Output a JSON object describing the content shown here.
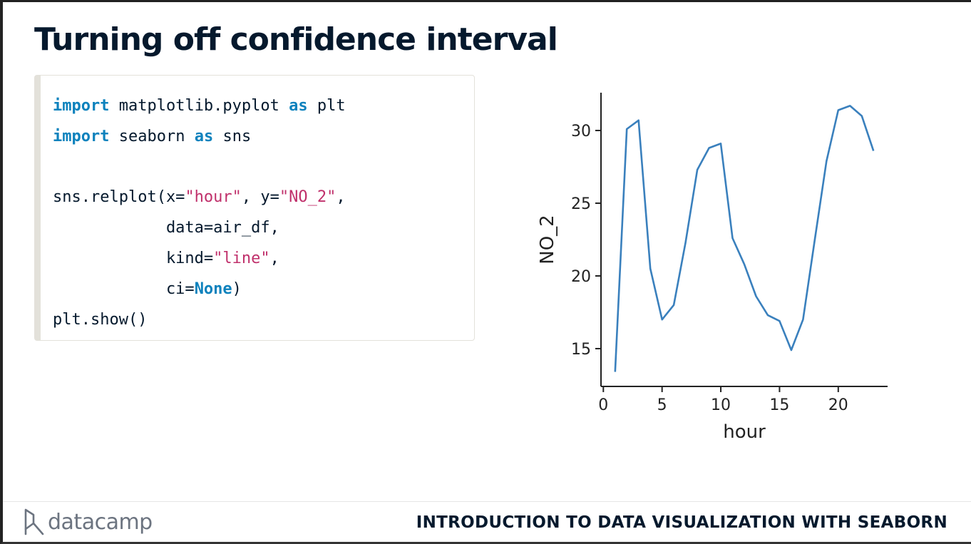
{
  "slide": {
    "title": "Turning off confidence interval",
    "footer_course": "INTRODUCTION TO DATA VISUALIZATION WITH SEABORN",
    "logo_text": "datacamp"
  },
  "code": {
    "l1": {
      "kw1": "import",
      "mid": " matplotlib.pyplot ",
      "kw2": "as",
      "tail": " plt"
    },
    "l2": {
      "kw1": "import",
      "mid": " seaborn ",
      "kw2": "as",
      "tail": " sns"
    },
    "l3": {
      "a": "sns.relplot(x=",
      "s1": "\"hour\"",
      "b": ", y=",
      "s2": "\"NO_2\"",
      "c": ","
    },
    "l4": {
      "a": "            data=air_df,"
    },
    "l5": {
      "a": "            kind=",
      "s1": "\"line\"",
      "b": ","
    },
    "l6": {
      "a": "            ci=",
      "kw": "None",
      "b": ")"
    },
    "l7": {
      "a": "plt.show()"
    }
  },
  "colors": {
    "keyword": "#0e82bd",
    "string": "#c0306b",
    "line": "#3a80bd",
    "title": "#05192d"
  },
  "chart_data": {
    "type": "line",
    "xlabel": "hour",
    "ylabel": "NO_2",
    "xlim": [
      -0.2,
      24.2
    ],
    "ylim": [
      12.4,
      32.6
    ],
    "xticks": [
      0,
      5,
      10,
      15,
      20
    ],
    "yticks": [
      15,
      20,
      25,
      30
    ],
    "grid": false,
    "series": [
      {
        "x": [
          1,
          2,
          3,
          4,
          5,
          6,
          7,
          8,
          9,
          10,
          11,
          12,
          13,
          14,
          15,
          16,
          17,
          18,
          19,
          20,
          21,
          22,
          23
        ],
        "values": [
          13.4,
          30.1,
          30.7,
          20.5,
          17.0,
          18.0,
          22.3,
          27.3,
          28.8,
          29.1,
          22.6,
          20.8,
          18.6,
          17.3,
          16.9,
          14.9,
          17.0,
          22.5,
          27.9,
          31.4,
          31.7,
          31.0,
          28.6
        ]
      }
    ]
  }
}
